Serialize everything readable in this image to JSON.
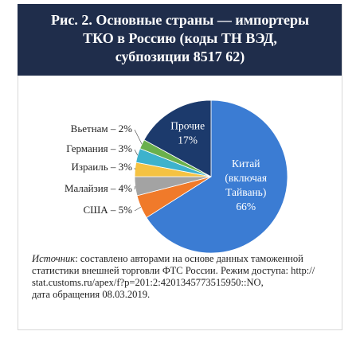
{
  "chart_data": {
    "type": "pie",
    "title": [
      "Рис. 2. Основные страны — импортеры",
      "ТКО в Россию (коды ТН ВЭД,",
      "субпозиции 8517 62)"
    ],
    "values": [
      66,
      5,
      4,
      3,
      3,
      2,
      17
    ],
    "value_labels": [
      [
        "Китай",
        "(включая",
        "Тайвань)",
        "66%"
      ],
      [
        "США – 5%"
      ],
      [
        "Малайзия – 4%"
      ],
      [
        "Израиль – 3%"
      ],
      [
        "Германия – 3%"
      ],
      [
        "Вьетнам – 2%"
      ],
      [
        "Прочие",
        "17%"
      ]
    ],
    "colors": [
      "#3b7cd3",
      "#f07a2a",
      "#a3a3a3",
      "#f5c242",
      "#3db2cc",
      "#6ab04c",
      "#1c3a6c"
    ],
    "startangle": 90,
    "counterclock": false
  },
  "source": {
    "label": "Источник",
    "lines": [
      ": составлено авторами на основе данных таможенной",
      "статистики внешней торговли ФТС России. Режим доступа: http://",
      "stat.customs.ru/apex/f?p=201:2:4201345773515950::NO,",
      "дата обращения 08.03.2019."
    ]
  }
}
